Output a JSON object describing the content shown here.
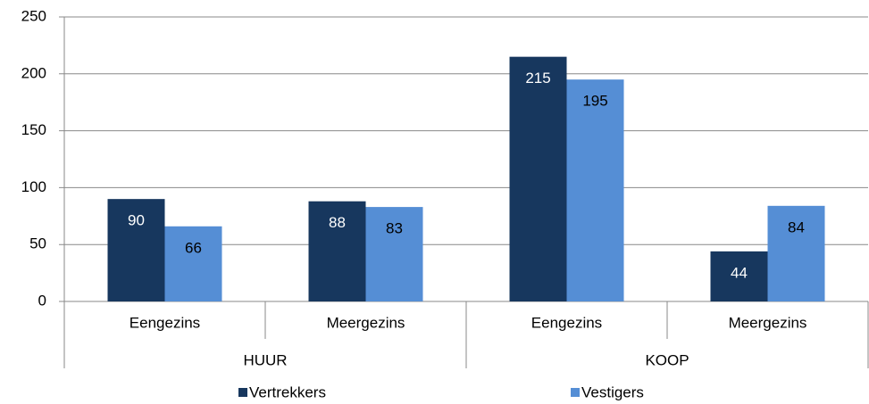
{
  "chart_data": {
    "type": "bar",
    "categories": [
      "Eengezins",
      "Meergezins",
      "Eengezins",
      "Meergezins"
    ],
    "groups": [
      "HUUR",
      "KOOP"
    ],
    "series": [
      {
        "name": "Vertrekkers",
        "color": "#17375e",
        "values": [
          90,
          88,
          215,
          44
        ]
      },
      {
        "name": "Vestigers",
        "color": "#558ed5",
        "values": [
          66,
          83,
          195,
          84
        ]
      }
    ],
    "ylim": [
      0,
      250
    ],
    "yticks": [
      0,
      50,
      100,
      150,
      200,
      250
    ],
    "grid": true,
    "legend": "bottom"
  }
}
